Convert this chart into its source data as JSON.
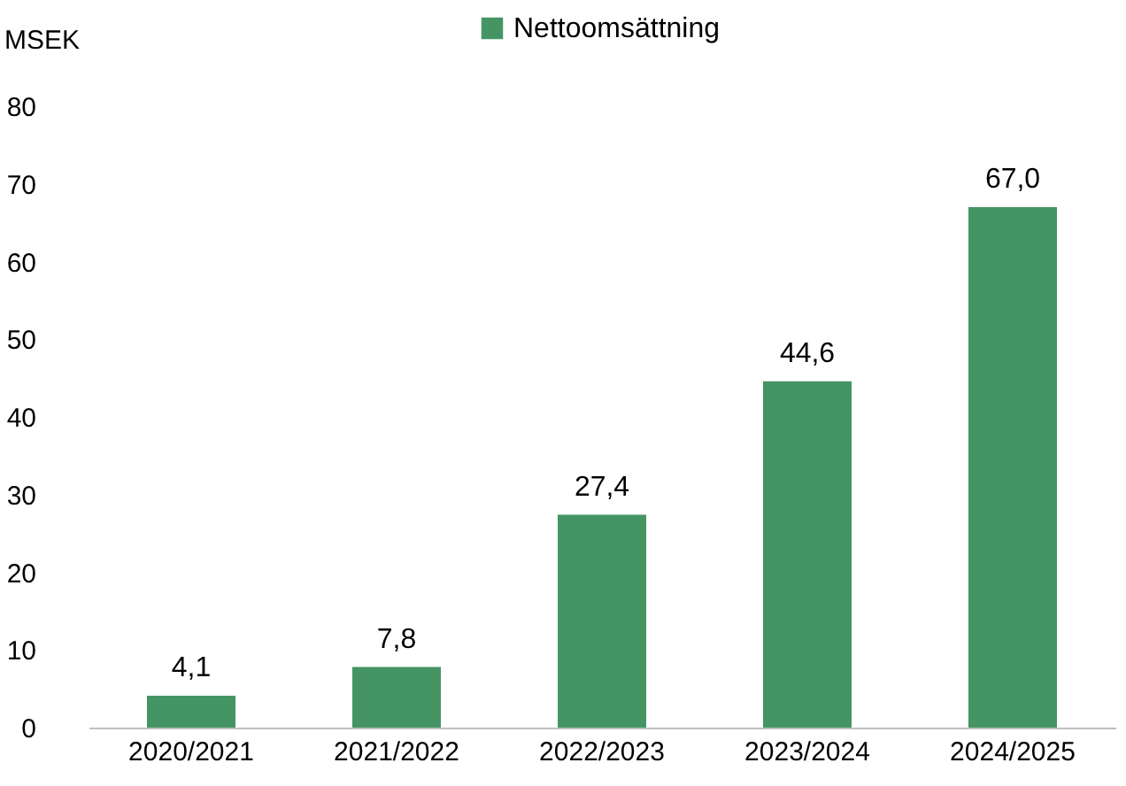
{
  "chart_data": {
    "type": "bar",
    "ylabel": "MSEK",
    "categories": [
      "2020/2021",
      "2021/2022",
      "2022/2023",
      "2023/2024",
      "2024/2025"
    ],
    "series": [
      {
        "name": "Nettoomsättning",
        "color": "#459564",
        "values": [
          4.1,
          7.8,
          27.4,
          44.6,
          67.0
        ],
        "value_labels": [
          "4,1",
          "7,8",
          "27,4",
          "44,6",
          "67,0"
        ]
      }
    ],
    "ylim": [
      0,
      80
    ],
    "yticks": [
      0,
      10,
      20,
      30,
      40,
      50,
      60,
      70,
      80
    ],
    "grid": false,
    "legend": "top"
  }
}
